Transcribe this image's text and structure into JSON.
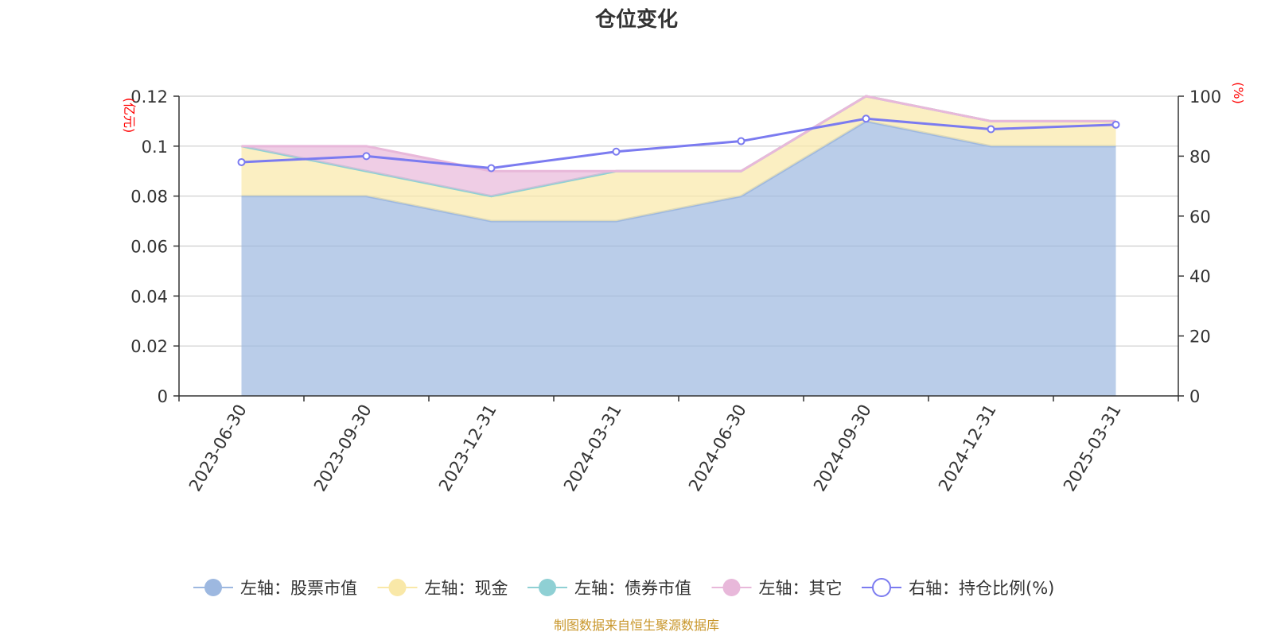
{
  "chart_data": {
    "type": "area",
    "title": "仓位变化",
    "categories": [
      "2023-06-30",
      "2023-09-30",
      "2023-12-31",
      "2024-03-31",
      "2024-06-30",
      "2024-09-30",
      "2024-12-31",
      "2025-03-31"
    ],
    "left_axis": {
      "unit": "(亿元)",
      "ylim": [
        0,
        0.12
      ],
      "ticks": [
        "0",
        "0.02",
        "0.04",
        "0.06",
        "0.08",
        "0.1",
        "0.12"
      ]
    },
    "right_axis": {
      "unit": "(%)",
      "ylim": [
        0,
        100
      ],
      "ticks": [
        "0",
        "20",
        "40",
        "60",
        "80",
        "100"
      ]
    },
    "stack_series": [
      {
        "name": "左轴：股票市值",
        "axis": "left",
        "color": "#9db8e0",
        "values": [
          0.08,
          0.08,
          0.07,
          0.07,
          0.08,
          0.11,
          0.1,
          0.1
        ]
      },
      {
        "name": "左轴：现金",
        "axis": "left",
        "color": "#f9e8a8",
        "values": [
          0.02,
          0.01,
          0.01,
          0.02,
          0.01,
          0.01,
          0.01,
          0.01
        ]
      },
      {
        "name": "左轴：债券市值",
        "axis": "left",
        "color": "#8fd0d4",
        "values": [
          0,
          0,
          0,
          0,
          0,
          0,
          0,
          0
        ]
      },
      {
        "name": "左轴：其它",
        "axis": "left",
        "color": "#e8b8da",
        "values": [
          0,
          0.01,
          0.01,
          0,
          0,
          0,
          0,
          0
        ]
      }
    ],
    "line_series": {
      "name": "右轴：持仓比例(%)",
      "axis": "right",
      "color": "#7b7bf0",
      "values": [
        78,
        80,
        76,
        81.5,
        85,
        92.5,
        89,
        90.5
      ]
    },
    "legend_position": "bottom",
    "grid": true
  },
  "source": "制图数据来自恒生聚源数据库"
}
